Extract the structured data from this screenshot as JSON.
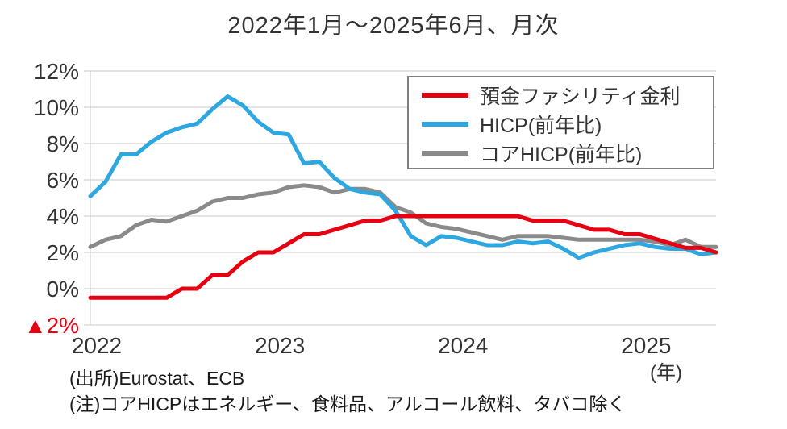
{
  "chart": {
    "title": "2022年1月～2025年6月、月次",
    "x_axis_unit": "(年)"
  },
  "colors": {
    "text": "#333333",
    "grid": "#c9c9c9",
    "negative_tick": "#e60012",
    "background": "#ffffff"
  },
  "chart_data": {
    "type": "line",
    "title": "2022年1月～2025年6月、月次",
    "frequency": "monthly",
    "x_start": "2022-01",
    "x_end": "2025-06",
    "ylim": [
      -2,
      12
    ],
    "grid": true,
    "legend_position": "top-right",
    "y_ticks": [
      {
        "value": 12,
        "label": "12%"
      },
      {
        "value": 10,
        "label": "10%"
      },
      {
        "value": 8,
        "label": "8%"
      },
      {
        "value": 6,
        "label": "6%"
      },
      {
        "value": 4,
        "label": "4%"
      },
      {
        "value": 2,
        "label": "2%"
      },
      {
        "value": 0,
        "label": "0%"
      },
      {
        "value": -2,
        "label": "▲2%",
        "color": "#e60012"
      }
    ],
    "x_ticks": [
      {
        "month_index": 0,
        "label": "2022"
      },
      {
        "month_index": 12,
        "label": "2023"
      },
      {
        "month_index": 24,
        "label": "2024"
      },
      {
        "month_index": 36,
        "label": "2025"
      }
    ],
    "series": [
      {
        "id": "deposit_facility_rate",
        "name": "預金ファシリティ金利",
        "color": "#e60012",
        "values": [
          -0.5,
          -0.5,
          -0.5,
          -0.5,
          -0.5,
          -0.5,
          0,
          0,
          0.75,
          0.75,
          1.5,
          2,
          2,
          2.5,
          3,
          3,
          3.25,
          3.5,
          3.75,
          3.75,
          4,
          4,
          4,
          4,
          4,
          4,
          4,
          4,
          4,
          3.75,
          3.75,
          3.75,
          3.5,
          3.25,
          3.25,
          3,
          3,
          2.75,
          2.5,
          2.25,
          2.25,
          2
        ]
      },
      {
        "id": "hicp_yoy",
        "name": "HICP(前年比)",
        "color": "#2ea7e0",
        "values": [
          5.1,
          5.9,
          7.4,
          7.4,
          8.1,
          8.6,
          8.9,
          9.1,
          9.9,
          10.6,
          10.1,
          9.2,
          8.6,
          8.5,
          6.9,
          7.0,
          6.1,
          5.5,
          5.3,
          5.2,
          4.3,
          2.9,
          2.4,
          2.9,
          2.8,
          2.6,
          2.4,
          2.4,
          2.6,
          2.5,
          2.6,
          2.2,
          1.7,
          2.0,
          2.2,
          2.4,
          2.5,
          2.3,
          2.2,
          2.2,
          1.9,
          2.0
        ]
      },
      {
        "id": "core_hicp_yoy",
        "name": "コアHICP(前年比)",
        "color": "#8a8a8a",
        "values": [
          2.3,
          2.7,
          2.9,
          3.5,
          3.8,
          3.7,
          4.0,
          4.3,
          4.8,
          5.0,
          5.0,
          5.2,
          5.3,
          5.6,
          5.7,
          5.6,
          5.3,
          5.5,
          5.5,
          5.3,
          4.5,
          4.2,
          3.6,
          3.4,
          3.3,
          3.1,
          2.9,
          2.7,
          2.9,
          2.9,
          2.9,
          2.8,
          2.7,
          2.7,
          2.7,
          2.7,
          2.7,
          2.6,
          2.4,
          2.7,
          2.3,
          2.3
        ]
      }
    ]
  },
  "footer": {
    "source": "(出所)Eurostat、ECB",
    "note": "(注)コアHICPはエネルギー、食料品、アルコール飲料、タバコ除く"
  }
}
